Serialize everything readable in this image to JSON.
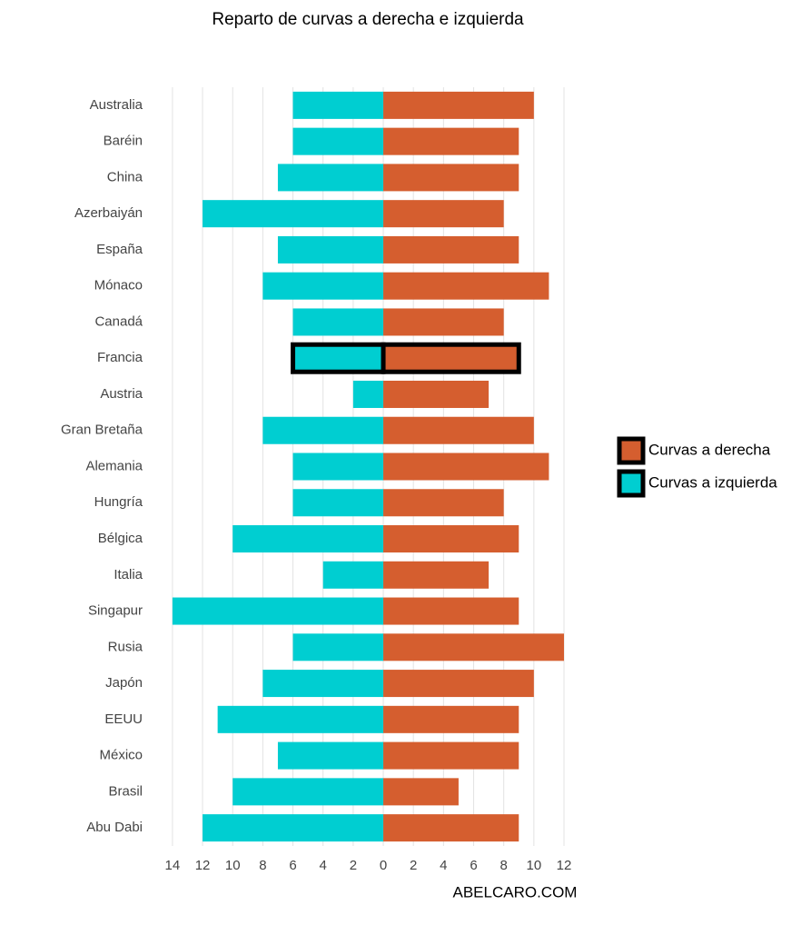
{
  "chart_data": {
    "type": "bar",
    "orientation": "horizontal",
    "title": "Reparto de curvas a derecha e izquierda",
    "caption": "ABELCARO.COM",
    "categories": [
      "Australia",
      "Baréin",
      "China",
      "Azerbaiyán",
      "España",
      "Mónaco",
      "Canadá",
      "Francia",
      "Austria",
      "Gran Bretaña",
      "Alemania",
      "Hungría",
      "Bélgica",
      "Italia",
      "Singapur",
      "Rusia",
      "Japón",
      "EEUU",
      "México",
      "Brasil",
      "Abu Dabi"
    ],
    "series": [
      {
        "name": "Curvas a derecha",
        "color": "#d55e2f",
        "values": [
          10,
          9,
          9,
          8,
          9,
          11,
          8,
          9,
          7,
          10,
          11,
          8,
          9,
          7,
          9,
          12,
          10,
          9,
          9,
          5,
          9
        ]
      },
      {
        "name": "Curvas a izquierda",
        "color": "#00ced1",
        "values": [
          -6,
          -6,
          -7,
          -12,
          -7,
          -8,
          -6,
          -6,
          -2,
          -8,
          -6,
          -6,
          -10,
          -4,
          -14,
          -6,
          -8,
          -11,
          -7,
          -10,
          -12
        ]
      }
    ],
    "highlight": "Francia",
    "xlim": [
      -14.5,
      12.5
    ],
    "xticks": [
      {
        "value": -14,
        "label": "14"
      },
      {
        "value": -12,
        "label": "12"
      },
      {
        "value": -10,
        "label": "10"
      },
      {
        "value": -8,
        "label": "8"
      },
      {
        "value": -6,
        "label": "6"
      },
      {
        "value": -4,
        "label": "4"
      },
      {
        "value": -2,
        "label": "2"
      },
      0,
      2,
      4,
      6,
      8,
      10,
      12
    ],
    "grid": true,
    "legend": "right"
  }
}
